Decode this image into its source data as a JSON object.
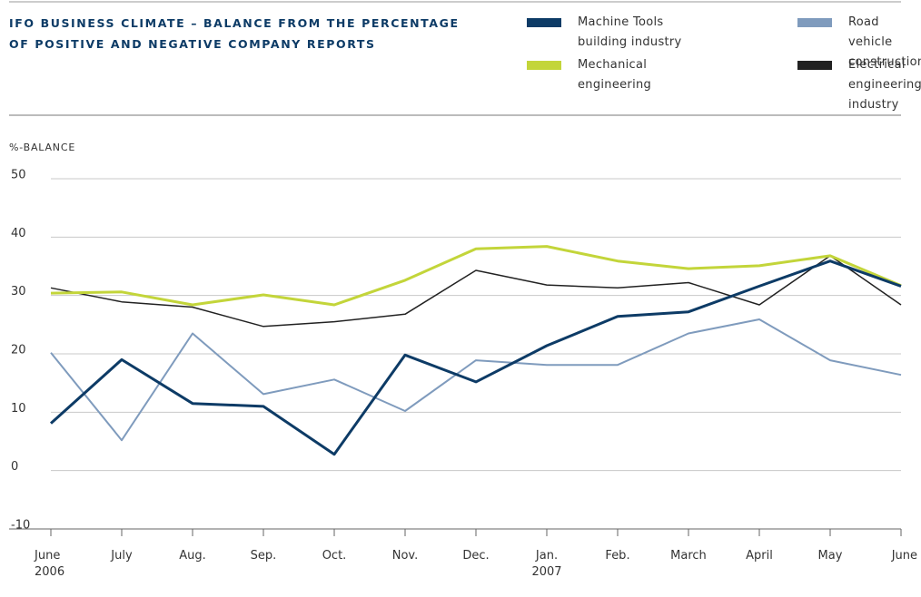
{
  "chart_data": {
    "type": "line",
    "title": "IFO BUSINESS CLIMATE – BALANCE FROM THE PERCENTAGE\nOF POSITIVE AND NEGATIVE COMPANY REPORTS",
    "y_label": "%-BALANCE",
    "categories": [
      "June\n2006",
      "July",
      "Aug.",
      "Sep.",
      "Oct.",
      "Nov.",
      "Dec.",
      "Jan.\n2007",
      "Feb.",
      "March",
      "April",
      "May",
      "June"
    ],
    "series": [
      {
        "name": "Machine Tools\nbuilding industry",
        "color": "#0d3b66",
        "width": 3,
        "values": [
          8.1,
          19,
          11.5,
          11,
          2.8,
          19.8,
          15.2,
          21.4,
          26.4,
          27.2,
          31.6,
          35.9,
          31.6
        ]
      },
      {
        "name": "Road vehicle\nconstruction",
        "color": "#7f9bbd",
        "width": 2,
        "values": [
          20.2,
          5.2,
          23.5,
          13.1,
          15.6,
          10.2,
          18.9,
          18.1,
          18.1,
          23.5,
          25.9,
          18.9,
          16.4
        ]
      },
      {
        "name": "Mechanical\nengineering",
        "color": "#c3d53a",
        "width": 3,
        "values": [
          30.4,
          30.6,
          28.4,
          30.1,
          28.4,
          32.6,
          38,
          38.4,
          35.9,
          34.6,
          35.1,
          36.8,
          31.7
        ]
      },
      {
        "name": "Electrical\nengineering industry",
        "color": "#222222",
        "width": 1.5,
        "values": [
          31.3,
          28.9,
          28,
          24.7,
          25.5,
          26.8,
          34.3,
          31.8,
          31.3,
          32.2,
          28.4,
          36.8,
          28.4
        ]
      }
    ],
    "ylim": [
      -10,
      50
    ],
    "yticks": [
      -10,
      0,
      10,
      20,
      30,
      40,
      50
    ],
    "grid": true
  }
}
